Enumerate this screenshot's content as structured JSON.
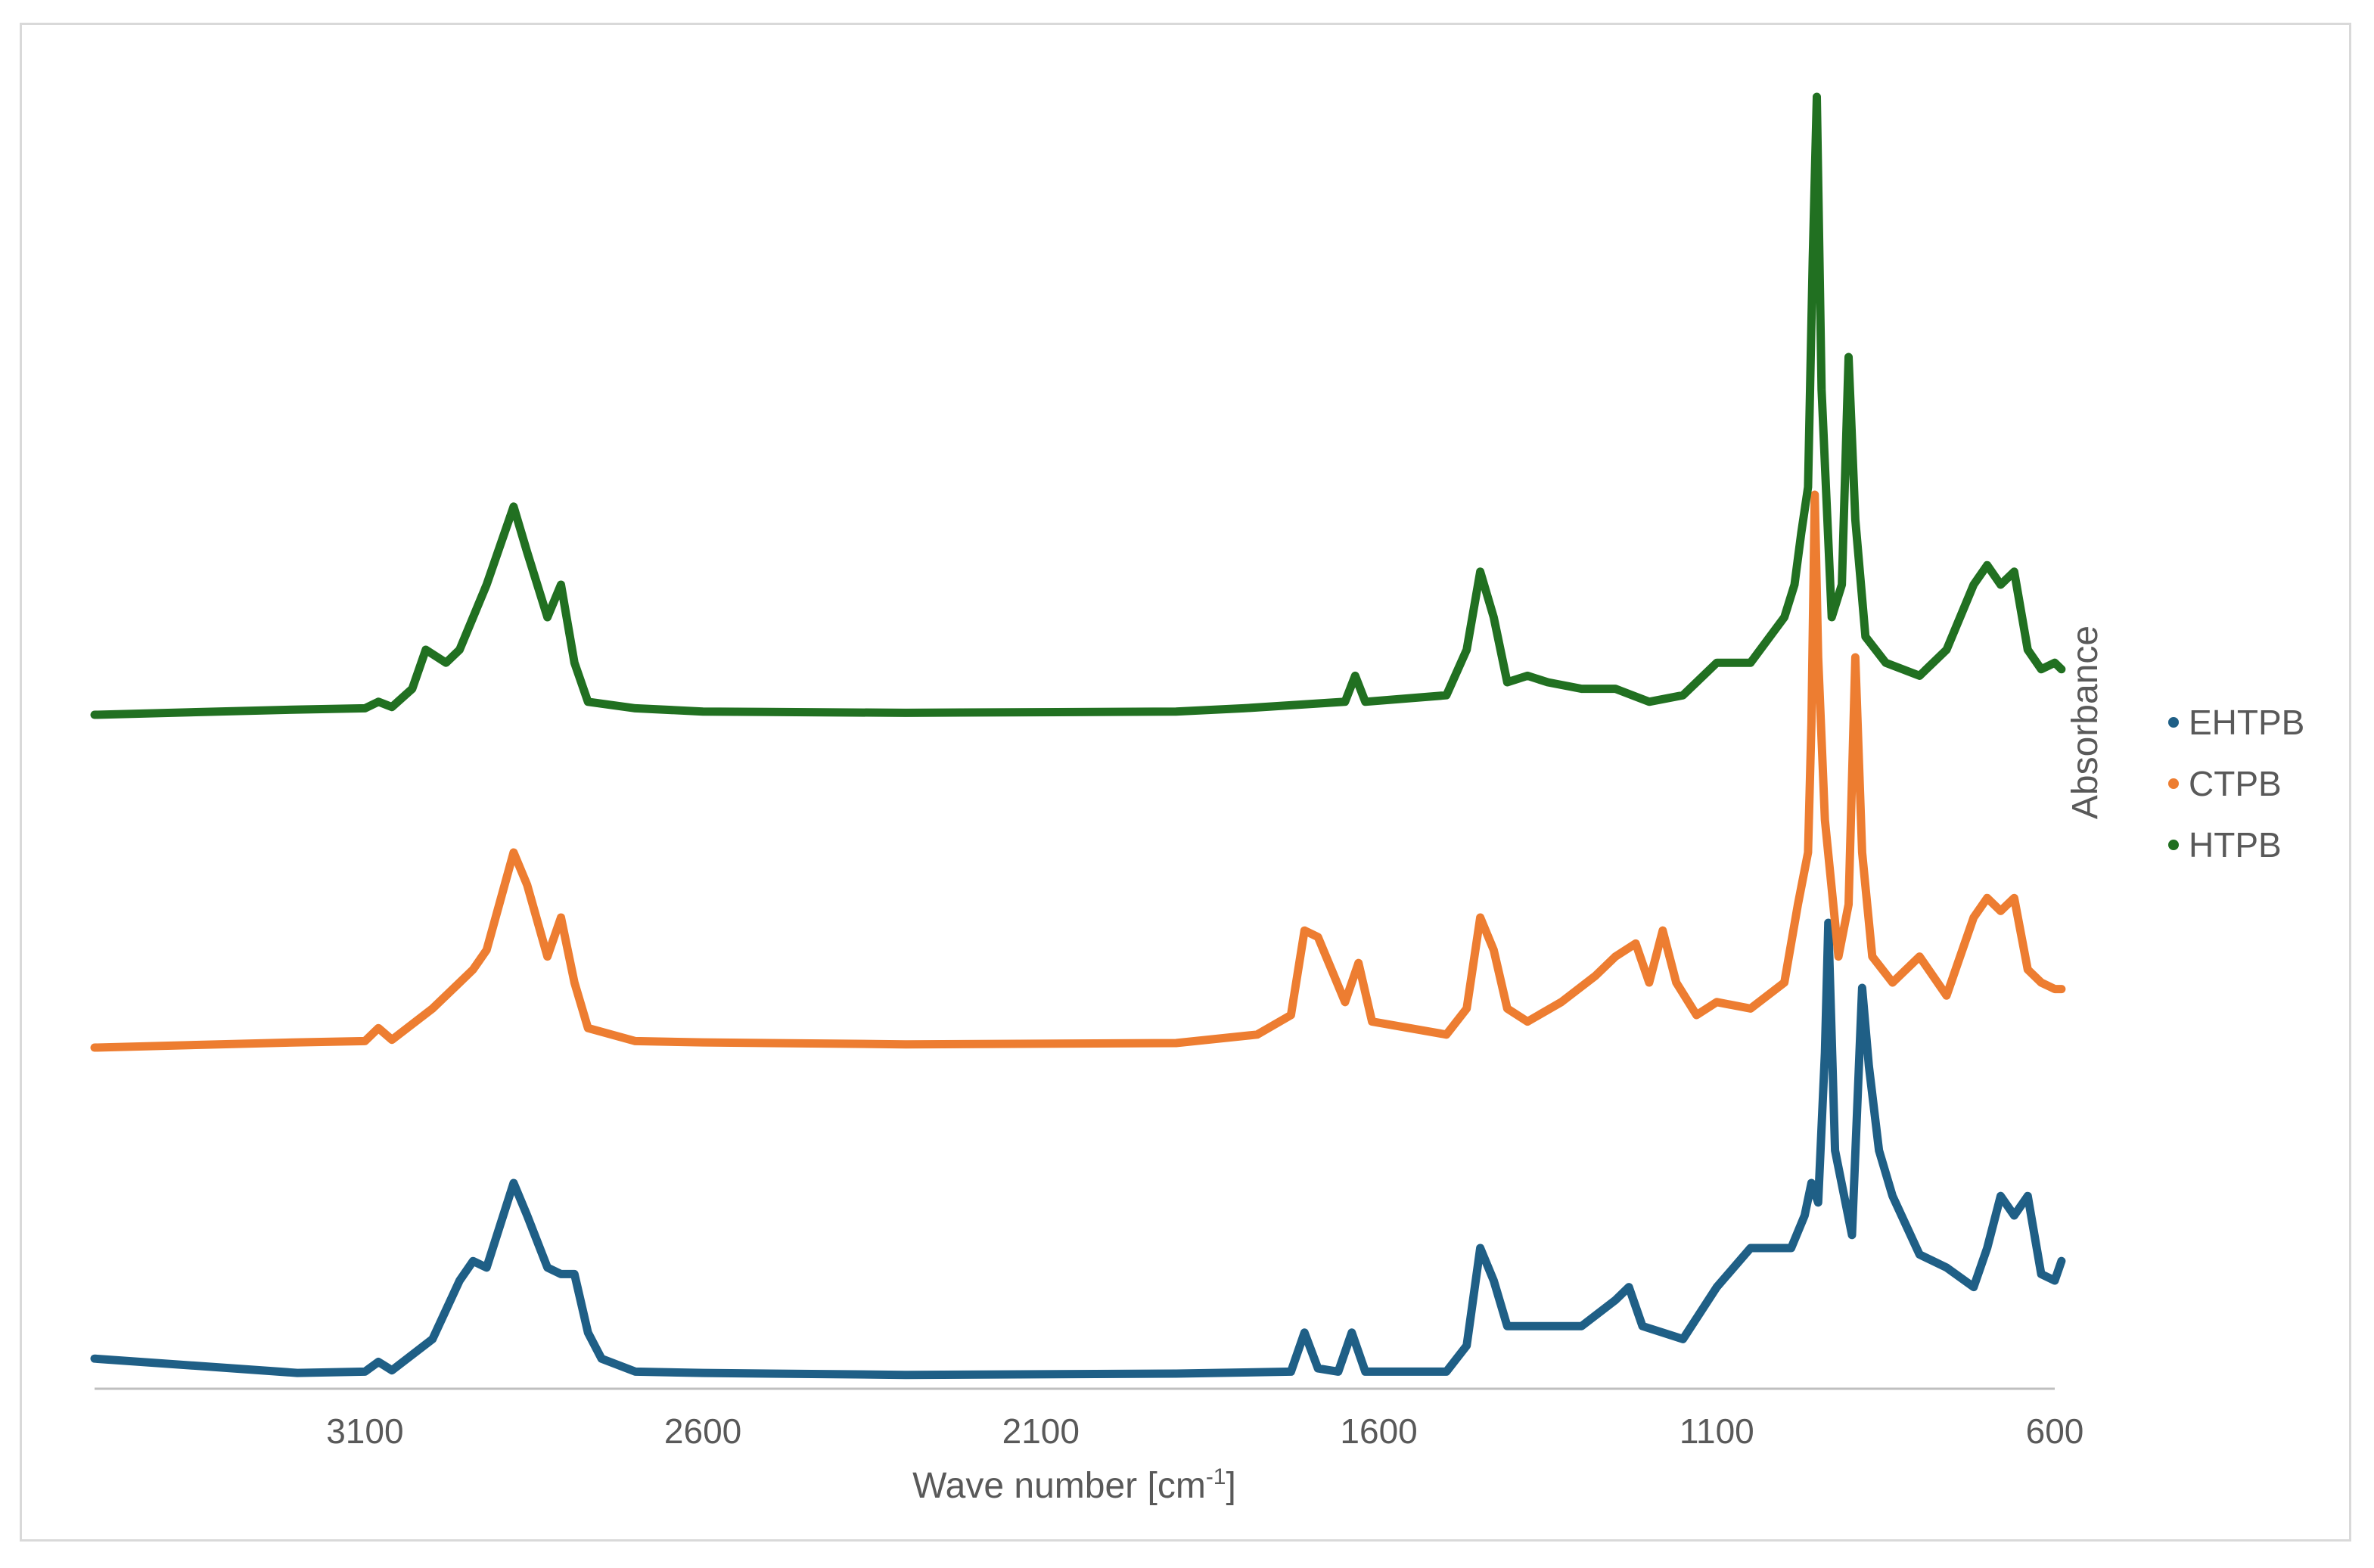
{
  "chart_data": {
    "type": "line",
    "xlabel": "Wave number [cm",
    "xlabel_superscript": "-1",
    "xlabel_suffix": "]",
    "ylabel": "Absorbance",
    "x_reversed": true,
    "xlim": [
      3500,
      600
    ],
    "x_ticks": [
      "3100",
      "2600",
      "2100",
      "1600",
      "1100",
      "600"
    ],
    "y_ticks_shown": false,
    "gridlines": false,
    "legend_position": "right",
    "legend": [
      "EHTPB",
      "CTPB",
      "HTPB"
    ],
    "series": [
      {
        "name": "EHTPB",
        "color": "#1f5f86",
        "offset": 0,
        "points": [
          [
            3500,
            0.03
          ],
          [
            3200,
            0.008
          ],
          [
            3100,
            0.01
          ],
          [
            3080,
            0.025
          ],
          [
            3060,
            0.012
          ],
          [
            3000,
            0.06
          ],
          [
            2960,
            0.15
          ],
          [
            2940,
            0.18
          ],
          [
            2920,
            0.17
          ],
          [
            2880,
            0.3
          ],
          [
            2860,
            0.25
          ],
          [
            2830,
            0.17
          ],
          [
            2810,
            0.16
          ],
          [
            2790,
            0.16
          ],
          [
            2770,
            0.07
          ],
          [
            2750,
            0.03
          ],
          [
            2700,
            0.01
          ],
          [
            2600,
            0.008
          ],
          [
            2300,
            0.005
          ],
          [
            1900,
            0.007
          ],
          [
            1730,
            0.01
          ],
          [
            1710,
            0.07
          ],
          [
            1690,
            0.015
          ],
          [
            1660,
            0.01
          ],
          [
            1640,
            0.07
          ],
          [
            1620,
            0.01
          ],
          [
            1500,
            0.01
          ],
          [
            1470,
            0.05
          ],
          [
            1450,
            0.2
          ],
          [
            1430,
            0.15
          ],
          [
            1410,
            0.08
          ],
          [
            1380,
            0.08
          ],
          [
            1300,
            0.08
          ],
          [
            1250,
            0.12
          ],
          [
            1230,
            0.14
          ],
          [
            1210,
            0.08
          ],
          [
            1150,
            0.06
          ],
          [
            1100,
            0.14
          ],
          [
            1050,
            0.2
          ],
          [
            990,
            0.2
          ],
          [
            970,
            0.25
          ],
          [
            960,
            0.3
          ],
          [
            950,
            0.27
          ],
          [
            940,
            0.5
          ],
          [
            935,
            0.7
          ],
          [
            925,
            0.35
          ],
          [
            900,
            0.22
          ],
          [
            885,
            0.6
          ],
          [
            875,
            0.48
          ],
          [
            860,
            0.35
          ],
          [
            840,
            0.28
          ],
          [
            800,
            0.19
          ],
          [
            760,
            0.17
          ],
          [
            720,
            0.14
          ],
          [
            700,
            0.2
          ],
          [
            680,
            0.28
          ],
          [
            660,
            0.25
          ],
          [
            640,
            0.28
          ],
          [
            620,
            0.16
          ],
          [
            600,
            0.15
          ],
          [
            590,
            0.18
          ]
        ]
      },
      {
        "name": "CTPB",
        "color": "#ed7d31",
        "offset": 1,
        "points": [
          [
            3500,
            0.0
          ],
          [
            3200,
            0.008
          ],
          [
            3100,
            0.01
          ],
          [
            3080,
            0.03
          ],
          [
            3060,
            0.012
          ],
          [
            3000,
            0.06
          ],
          [
            2960,
            0.1
          ],
          [
            2940,
            0.12
          ],
          [
            2920,
            0.15
          ],
          [
            2880,
            0.3
          ],
          [
            2860,
            0.25
          ],
          [
            2830,
            0.14
          ],
          [
            2810,
            0.2
          ],
          [
            2790,
            0.1
          ],
          [
            2770,
            0.03
          ],
          [
            2700,
            0.01
          ],
          [
            2600,
            0.008
          ],
          [
            2300,
            0.005
          ],
          [
            1900,
            0.007
          ],
          [
            1780,
            0.02
          ],
          [
            1730,
            0.05
          ],
          [
            1710,
            0.18
          ],
          [
            1690,
            0.17
          ],
          [
            1670,
            0.12
          ],
          [
            1650,
            0.07
          ],
          [
            1630,
            0.13
          ],
          [
            1610,
            0.04
          ],
          [
            1500,
            0.02
          ],
          [
            1470,
            0.06
          ],
          [
            1450,
            0.2
          ],
          [
            1430,
            0.15
          ],
          [
            1410,
            0.06
          ],
          [
            1380,
            0.04
          ],
          [
            1330,
            0.07
          ],
          [
            1280,
            0.11
          ],
          [
            1250,
            0.14
          ],
          [
            1220,
            0.16
          ],
          [
            1200,
            0.1
          ],
          [
            1180,
            0.18
          ],
          [
            1160,
            0.1
          ],
          [
            1130,
            0.05
          ],
          [
            1100,
            0.07
          ],
          [
            1050,
            0.06
          ],
          [
            1000,
            0.1
          ],
          [
            980,
            0.22
          ],
          [
            965,
            0.3
          ],
          [
            960,
            0.5
          ],
          [
            955,
            0.85
          ],
          [
            950,
            0.6
          ],
          [
            940,
            0.35
          ],
          [
            920,
            0.14
          ],
          [
            905,
            0.22
          ],
          [
            895,
            0.6
          ],
          [
            885,
            0.3
          ],
          [
            870,
            0.14
          ],
          [
            840,
            0.1
          ],
          [
            800,
            0.14
          ],
          [
            760,
            0.08
          ],
          [
            720,
            0.2
          ],
          [
            700,
            0.23
          ],
          [
            680,
            0.21
          ],
          [
            660,
            0.23
          ],
          [
            640,
            0.12
          ],
          [
            620,
            0.1
          ],
          [
            600,
            0.09
          ],
          [
            590,
            0.09
          ]
        ]
      },
      {
        "name": "HTPB",
        "color": "#217021",
        "offset": 2,
        "points": [
          [
            3500,
            0.0
          ],
          [
            3200,
            0.008
          ],
          [
            3100,
            0.01
          ],
          [
            3080,
            0.02
          ],
          [
            3060,
            0.012
          ],
          [
            3030,
            0.04
          ],
          [
            3010,
            0.1
          ],
          [
            2980,
            0.08
          ],
          [
            2960,
            0.1
          ],
          [
            2920,
            0.2
          ],
          [
            2880,
            0.32
          ],
          [
            2860,
            0.25
          ],
          [
            2830,
            0.15
          ],
          [
            2810,
            0.2
          ],
          [
            2790,
            0.08
          ],
          [
            2770,
            0.02
          ],
          [
            2700,
            0.01
          ],
          [
            2600,
            0.005
          ],
          [
            2300,
            0.003
          ],
          [
            1900,
            0.005
          ],
          [
            1800,
            0.01
          ],
          [
            1650,
            0.02
          ],
          [
            1635,
            0.06
          ],
          [
            1620,
            0.02
          ],
          [
            1500,
            0.03
          ],
          [
            1470,
            0.1
          ],
          [
            1450,
            0.22
          ],
          [
            1430,
            0.15
          ],
          [
            1410,
            0.05
          ],
          [
            1380,
            0.06
          ],
          [
            1350,
            0.05
          ],
          [
            1300,
            0.04
          ],
          [
            1250,
            0.04
          ],
          [
            1200,
            0.02
          ],
          [
            1150,
            0.03
          ],
          [
            1100,
            0.08
          ],
          [
            1050,
            0.08
          ],
          [
            1000,
            0.15
          ],
          [
            985,
            0.2
          ],
          [
            975,
            0.28
          ],
          [
            965,
            0.35
          ],
          [
            958,
            0.7
          ],
          [
            952,
            0.95
          ],
          [
            945,
            0.5
          ],
          [
            930,
            0.15
          ],
          [
            915,
            0.2
          ],
          [
            905,
            0.55
          ],
          [
            895,
            0.3
          ],
          [
            880,
            0.12
          ],
          [
            850,
            0.08
          ],
          [
            800,
            0.06
          ],
          [
            760,
            0.1
          ],
          [
            720,
            0.2
          ],
          [
            700,
            0.23
          ],
          [
            680,
            0.2
          ],
          [
            660,
            0.22
          ],
          [
            640,
            0.1
          ],
          [
            620,
            0.07
          ],
          [
            600,
            0.08
          ],
          [
            590,
            0.07
          ]
        ]
      }
    ]
  }
}
